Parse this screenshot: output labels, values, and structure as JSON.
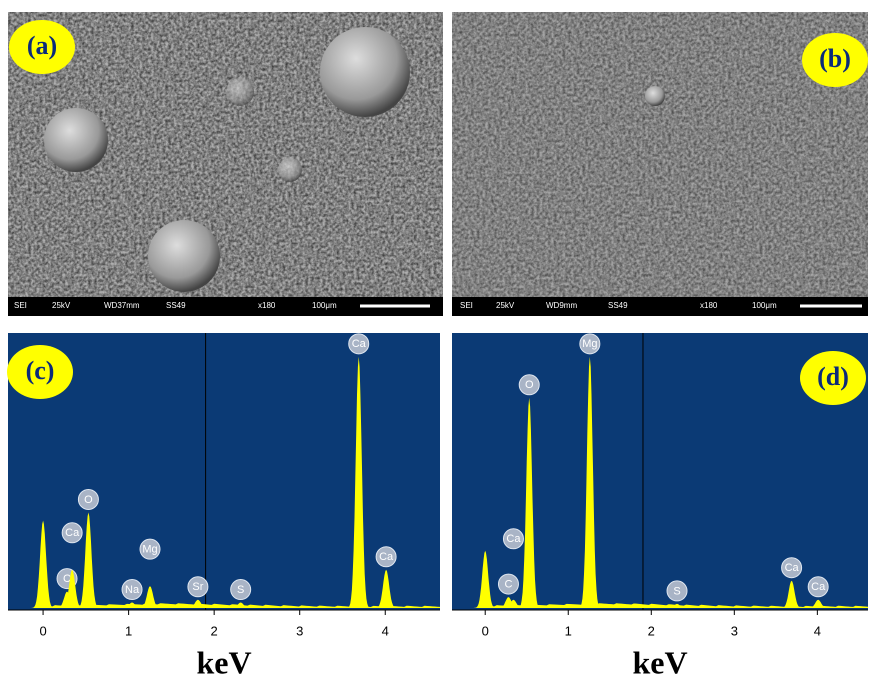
{
  "panels": [
    {
      "label": "(a)",
      "info": [
        "SEI",
        "25kV",
        "WD37mm",
        "SS49",
        "x180",
        "100μm"
      ]
    },
    {
      "label": "(b)",
      "info": [
        "SEI",
        "25kV",
        "WD9mm",
        "SS49",
        "x180",
        "100μm"
      ]
    },
    {
      "label": "(c)"
    },
    {
      "label": "(d)"
    }
  ],
  "chart_data": [
    {
      "type": "spectrum",
      "xlabel": "keV",
      "xlim": [
        -0.41,
        4.64
      ],
      "xticks": [
        0,
        1,
        2,
        3,
        4
      ],
      "ylim": [
        0,
        100
      ],
      "cursor": 1.9,
      "color": "#ffff00",
      "background": "#0b3a75",
      "peaks": {
        "x": [
          0.0,
          0.28,
          0.34,
          0.53,
          1.04,
          1.25,
          1.81,
          2.31,
          3.69,
          4.01
        ],
        "labels": [
          null,
          "C",
          "Ca",
          "O",
          "Na",
          "Mg",
          "Sr",
          "S",
          "Ca",
          "Ca"
        ],
        "values": [
          32,
          6,
          14,
          35,
          2,
          8,
          3,
          2,
          92,
          14
        ]
      }
    },
    {
      "type": "spectrum",
      "xlabel": "keV",
      "xlim": [
        -0.4,
        4.61
      ],
      "xticks": [
        0,
        1,
        2,
        3,
        4
      ],
      "ylim": [
        0,
        100
      ],
      "cursor": 1.9,
      "color": "#ffff00",
      "background": "#0b3a75",
      "peaks": {
        "x": [
          0.0,
          0.28,
          0.34,
          0.53,
          1.26,
          2.31,
          3.69,
          4.01
        ],
        "labels": [
          null,
          "C",
          "Ca",
          "O",
          "Mg",
          "S",
          "Ca",
          "Ca"
        ],
        "values": [
          21,
          4,
          3,
          77,
          92,
          1.5,
          10,
          3
        ]
      }
    }
  ]
}
